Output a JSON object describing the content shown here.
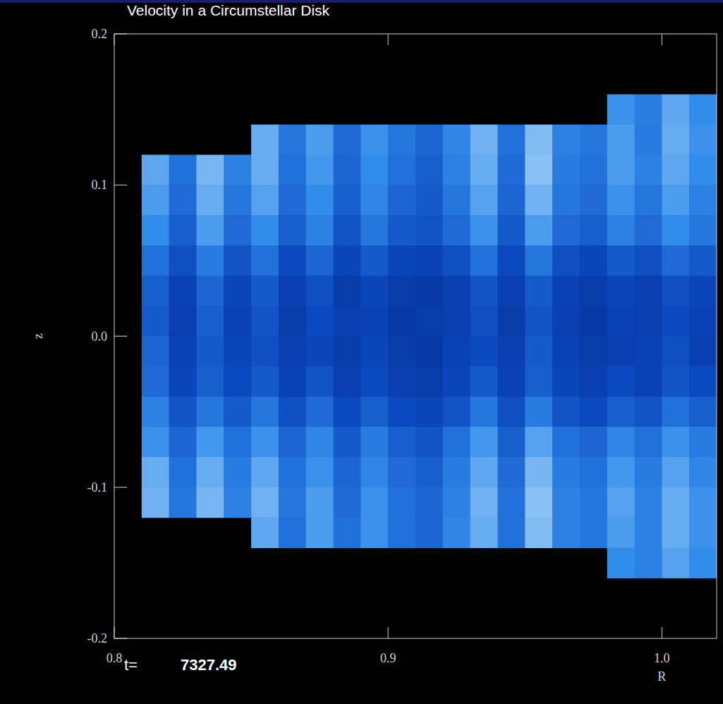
{
  "chart_data": {
    "type": "heatmap",
    "title": "Velocity in a Circumstellar Disk",
    "x_label": "R",
    "y_label": "z",
    "time_label": "t=",
    "time": 7327.49,
    "xlim": [
      0.8,
      1.02
    ],
    "ylim": [
      -0.2,
      0.2
    ],
    "xticks": [
      0.8,
      0.9,
      {
        "value": 1,
        "label": "1.0"
      }
    ],
    "yticks": [
      -0.2,
      -0.1,
      {
        "value": 0,
        "label": "0.0"
      },
      0.1,
      0.2
    ],
    "zlim": [
      0,
      1
    ],
    "x_edges": [
      0.8,
      0.81,
      0.82,
      0.83,
      0.84,
      0.85,
      0.86,
      0.87,
      0.88,
      0.89,
      0.9,
      0.91,
      0.92,
      0.93,
      0.94,
      0.95,
      0.96,
      0.97,
      0.98,
      0.99,
      1.0,
      1.01,
      1.02
    ],
    "y_edges": [
      0.16,
      0.14,
      0.12,
      0.1,
      0.08,
      0.06,
      0.04,
      0.02,
      0,
      -0.02,
      -0.04,
      -0.06,
      -0.08,
      -0.1,
      -0.12,
      -0.14,
      -0.16
    ],
    "cells": [
      [
        null,
        null,
        null,
        null,
        null,
        null,
        null,
        null,
        null,
        null,
        null,
        null,
        null,
        null,
        null,
        null,
        null,
        null,
        0.62,
        0.55,
        0.7,
        0.6
      ],
      [
        null,
        null,
        null,
        null,
        null,
        0.72,
        0.52,
        0.66,
        0.48,
        0.62,
        0.52,
        0.46,
        0.58,
        0.74,
        0.5,
        0.78,
        0.56,
        0.52,
        0.66,
        0.54,
        0.72,
        0.62
      ],
      [
        null,
        0.7,
        0.5,
        0.76,
        0.56,
        0.72,
        0.5,
        0.64,
        0.46,
        0.6,
        0.5,
        0.44,
        0.56,
        0.72,
        0.48,
        0.8,
        0.54,
        0.5,
        0.66,
        0.56,
        0.7,
        0.6
      ],
      [
        null,
        0.66,
        0.48,
        0.72,
        0.52,
        0.68,
        0.48,
        0.6,
        0.44,
        0.58,
        0.46,
        0.42,
        0.52,
        0.68,
        0.46,
        0.74,
        0.52,
        0.48,
        0.62,
        0.52,
        0.66,
        0.56
      ],
      [
        null,
        0.6,
        0.44,
        0.66,
        0.48,
        0.6,
        0.44,
        0.56,
        0.4,
        0.52,
        0.42,
        0.4,
        0.48,
        0.62,
        0.42,
        0.66,
        0.48,
        0.44,
        0.56,
        0.48,
        0.6,
        0.52
      ],
      [
        null,
        0.5,
        0.38,
        0.54,
        0.4,
        0.5,
        0.36,
        0.46,
        0.34,
        0.42,
        0.34,
        0.32,
        0.38,
        0.5,
        0.36,
        0.52,
        0.38,
        0.34,
        0.42,
        0.38,
        0.48,
        0.42
      ],
      [
        null,
        0.44,
        0.32,
        0.46,
        0.34,
        0.42,
        0.3,
        0.38,
        0.28,
        0.34,
        0.28,
        0.26,
        0.3,
        0.4,
        0.3,
        0.42,
        0.32,
        0.28,
        0.34,
        0.3,
        0.38,
        0.34
      ],
      [
        null,
        0.42,
        0.3,
        0.44,
        0.32,
        0.4,
        0.28,
        0.36,
        0.3,
        0.32,
        0.26,
        0.28,
        0.3,
        0.38,
        0.28,
        0.4,
        0.3,
        0.26,
        0.32,
        0.3,
        0.36,
        0.32
      ],
      [
        null,
        0.46,
        0.32,
        0.42,
        0.34,
        0.38,
        0.3,
        0.34,
        0.28,
        0.34,
        0.28,
        0.26,
        0.32,
        0.36,
        0.3,
        0.42,
        0.32,
        0.28,
        0.3,
        0.32,
        0.38,
        0.3
      ],
      [
        null,
        0.48,
        0.34,
        0.44,
        0.36,
        0.42,
        0.32,
        0.4,
        0.3,
        0.36,
        0.3,
        0.28,
        0.34,
        0.42,
        0.32,
        0.44,
        0.34,
        0.3,
        0.36,
        0.32,
        0.4,
        0.36
      ],
      [
        null,
        0.56,
        0.4,
        0.52,
        0.42,
        0.52,
        0.38,
        0.48,
        0.36,
        0.44,
        0.36,
        0.34,
        0.4,
        0.52,
        0.38,
        0.54,
        0.4,
        0.36,
        0.44,
        0.4,
        0.5,
        0.44
      ],
      [
        null,
        0.62,
        0.46,
        0.64,
        0.5,
        0.62,
        0.46,
        0.58,
        0.42,
        0.54,
        0.44,
        0.4,
        0.5,
        0.64,
        0.44,
        0.68,
        0.5,
        0.46,
        0.58,
        0.5,
        0.62,
        0.54
      ],
      [
        null,
        0.72,
        0.5,
        0.72,
        0.54,
        0.7,
        0.5,
        0.62,
        0.46,
        0.58,
        0.48,
        0.44,
        0.54,
        0.7,
        0.48,
        0.76,
        0.54,
        0.5,
        0.64,
        0.54,
        0.68,
        0.58
      ],
      [
        null,
        0.74,
        0.52,
        0.76,
        0.56,
        0.74,
        0.52,
        0.66,
        0.48,
        0.62,
        0.5,
        0.46,
        0.56,
        0.74,
        0.5,
        0.8,
        0.56,
        0.52,
        0.68,
        0.56,
        0.72,
        0.62
      ],
      [
        null,
        null,
        null,
        null,
        null,
        0.7,
        0.5,
        0.66,
        0.5,
        0.62,
        0.5,
        0.46,
        0.58,
        0.72,
        0.5,
        0.78,
        0.56,
        0.52,
        0.66,
        0.56,
        0.72,
        0.62
      ],
      [
        null,
        null,
        null,
        null,
        null,
        null,
        null,
        null,
        null,
        null,
        null,
        null,
        null,
        null,
        null,
        null,
        null,
        null,
        0.6,
        0.56,
        0.68,
        0.6
      ]
    ]
  }
}
